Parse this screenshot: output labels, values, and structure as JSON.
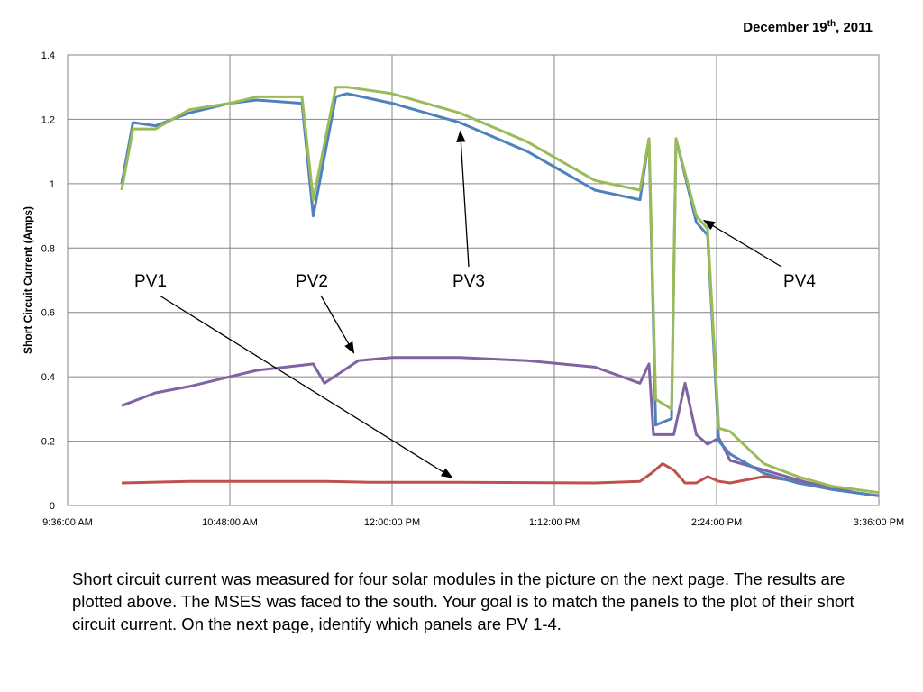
{
  "date": {
    "text": "December 19",
    "sup": "th",
    "year": ", 2011"
  },
  "caption": "Short circuit current was measured for four solar modules in the picture on the next page.  The results are plotted above.  The MSES was faced to the south.  Your goal is to match the panels to the plot of their short circuit current.  On the next page, identify which panels are PV 1-4.",
  "chart_data": {
    "type": "line",
    "title": "",
    "xlabel": "",
    "ylabel": "Short Circuit Current (Amps)",
    "xlim": [
      "9:36:00 AM",
      "3:36:00 PM"
    ],
    "ylim": [
      0,
      1.4
    ],
    "x_ticks": [
      "9:36:00 AM",
      "10:48:00 AM",
      "12:00:00 PM",
      "1:12:00 PM",
      "2:24:00 PM",
      "3:36:00 PM"
    ],
    "y_ticks": [
      "0",
      "0.2",
      "0.4",
      "0.6",
      "0.8",
      "1",
      "1.2",
      "1.4"
    ],
    "grid": true,
    "legend": "none",
    "series": [
      {
        "name": "PV1",
        "color": "#C0504D",
        "x": [
          "10:00 AM",
          "10:30 AM",
          "11:00 AM",
          "11:30 AM",
          "11:50 AM",
          "12:30 PM",
          "1:00 PM",
          "1:30 PM",
          "1:50 PM",
          "1:55 PM",
          "2:00 PM",
          "2:05 PM",
          "2:10 PM",
          "2:15 PM",
          "2:20 PM",
          "2:25 PM",
          "2:30 PM",
          "2:45 PM",
          "2:55 PM",
          "3:05 PM",
          "3:15 PM",
          "3:25 PM",
          "3:36 PM"
        ],
        "y": [
          0.07,
          0.075,
          0.075,
          0.075,
          0.072,
          0.072,
          0.071,
          0.07,
          0.075,
          0.1,
          0.13,
          0.11,
          0.07,
          0.07,
          0.09,
          0.075,
          0.07,
          0.09,
          0.08,
          0.07,
          0.06,
          0.04,
          0.03
        ]
      },
      {
        "name": "PV2",
        "color": "#8064A2",
        "x": [
          "10:00 AM",
          "10:15 AM",
          "10:30 AM",
          "10:48 AM",
          "11:00 AM",
          "11:25 AM",
          "11:30 AM",
          "11:45 AM",
          "12:00 PM",
          "12:30 PM",
          "1:00 PM",
          "1:30 PM",
          "1:50 PM",
          "1:54 PM",
          "1:56 PM",
          "2:05 PM",
          "2:10 PM",
          "2:15 PM",
          "2:20 PM",
          "2:25 PM",
          "2:30 PM",
          "2:45 PM",
          "3:00 PM",
          "3:15 PM",
          "3:36 PM"
        ],
        "y": [
          0.31,
          0.35,
          0.37,
          0.4,
          0.42,
          0.44,
          0.38,
          0.45,
          0.46,
          0.46,
          0.45,
          0.43,
          0.38,
          0.44,
          0.22,
          0.22,
          0.38,
          0.22,
          0.19,
          0.21,
          0.14,
          0.11,
          0.08,
          0.05,
          0.03
        ]
      },
      {
        "name": "PV3",
        "color": "#4F81BD",
        "x": [
          "10:00 AM",
          "10:05 AM",
          "10:15 AM",
          "10:30 AM",
          "10:48 AM",
          "11:00 AM",
          "11:20 AM",
          "11:25 AM",
          "11:35 AM",
          "11:40 AM",
          "12:00 PM",
          "12:30 PM",
          "1:00 PM",
          "1:30 PM",
          "1:50 PM",
          "1:54 PM",
          "1:57 PM",
          "2:04 PM",
          "2:06 PM",
          "2:15 PM",
          "2:20 PM",
          "2:25 PM",
          "2:30 PM",
          "2:45 PM",
          "3:00 PM",
          "3:15 PM",
          "3:36 PM"
        ],
        "y": [
          1.0,
          1.19,
          1.18,
          1.22,
          1.25,
          1.26,
          1.25,
          0.9,
          1.27,
          1.28,
          1.25,
          1.19,
          1.1,
          0.98,
          0.95,
          1.14,
          0.25,
          0.27,
          1.14,
          0.88,
          0.84,
          0.2,
          0.16,
          0.1,
          0.07,
          0.05,
          0.03
        ]
      },
      {
        "name": "PV4",
        "color": "#9BBB59",
        "x": [
          "10:00 AM",
          "10:05 AM",
          "10:15 AM",
          "10:30 AM",
          "10:48 AM",
          "11:00 AM",
          "11:20 AM",
          "11:25 AM",
          "11:35 AM",
          "11:40 AM",
          "12:00 PM",
          "12:30 PM",
          "1:00 PM",
          "1:30 PM",
          "1:50 PM",
          "1:54 PM",
          "1:57 PM",
          "2:04 PM",
          "2:06 PM",
          "2:15 PM",
          "2:20 PM",
          "2:25 PM",
          "2:30 PM",
          "2:45 PM",
          "3:00 PM",
          "3:15 PM",
          "3:36 PM"
        ],
        "y": [
          0.98,
          1.17,
          1.17,
          1.23,
          1.25,
          1.27,
          1.27,
          0.95,
          1.3,
          1.3,
          1.28,
          1.22,
          1.13,
          1.01,
          0.98,
          1.14,
          0.33,
          0.3,
          1.14,
          0.9,
          0.86,
          0.24,
          0.23,
          0.13,
          0.09,
          0.06,
          0.04
        ]
      }
    ],
    "annotations": [
      {
        "label": "PV1",
        "points_to": "PV1"
      },
      {
        "label": "PV2",
        "points_to": "PV2"
      },
      {
        "label": "PV3",
        "points_to": "PV3"
      },
      {
        "label": "PV4",
        "points_to": "PV4"
      }
    ]
  }
}
